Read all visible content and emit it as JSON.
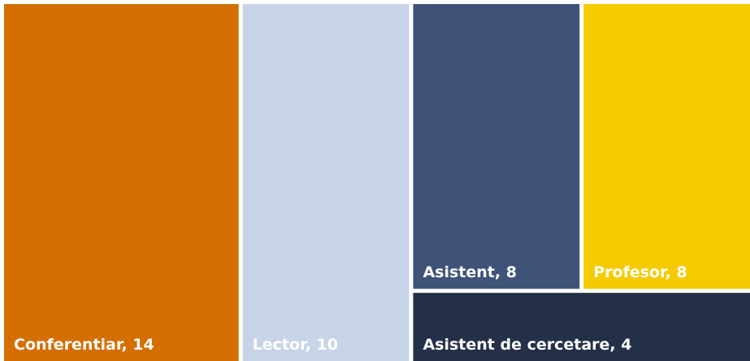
{
  "chart_data": {
    "type": "treemap",
    "labels": [
      "Conferentiar, 14",
      "Lector, 10",
      "Asistent, 8",
      "Profesor, 8",
      "Asistent de cercetare, 4"
    ],
    "values": [
      14,
      10,
      8,
      8,
      4
    ],
    "colors": [
      "#d46e00",
      "#c7d4e8",
      "#3f5378",
      "#f5cb00",
      "#243048"
    ]
  }
}
